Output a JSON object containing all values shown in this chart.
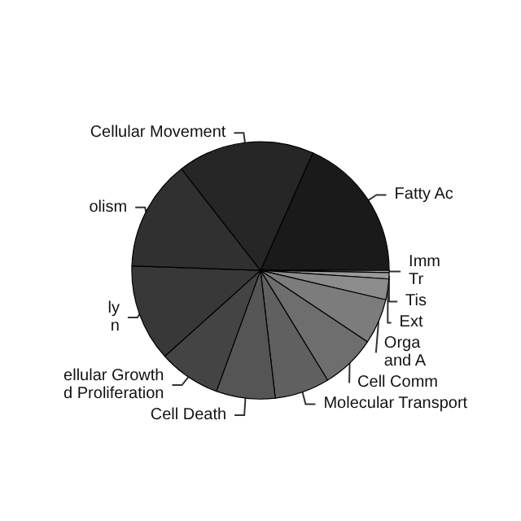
{
  "chart_data": {
    "type": "pie",
    "categories": [
      "Fatty Ac",
      "Imm\nTr",
      "Tis",
      "Ext",
      "Orga\nand A",
      "Cell Comm",
      "Molecular Transport",
      "Cell Death",
      "ellular Growth\nd Proliferation",
      "ly\nn",
      "olism",
      "Cellular Movement"
    ],
    "values": [
      18.3,
      0.3,
      0.8,
      2.6,
      5.7,
      6.9,
      6.9,
      7.4,
      7.8,
      12.2,
      13.9,
      17.2
    ],
    "colors": [
      "#1a1a1a",
      "#aaaaaa",
      "#9a9a9a",
      "#8c8c8c",
      "#7c7c7c",
      "#6e6e6e",
      "#606060",
      "#555555",
      "#444444",
      "#383838",
      "#303030",
      "#262626"
    ],
    "legend": false
  }
}
